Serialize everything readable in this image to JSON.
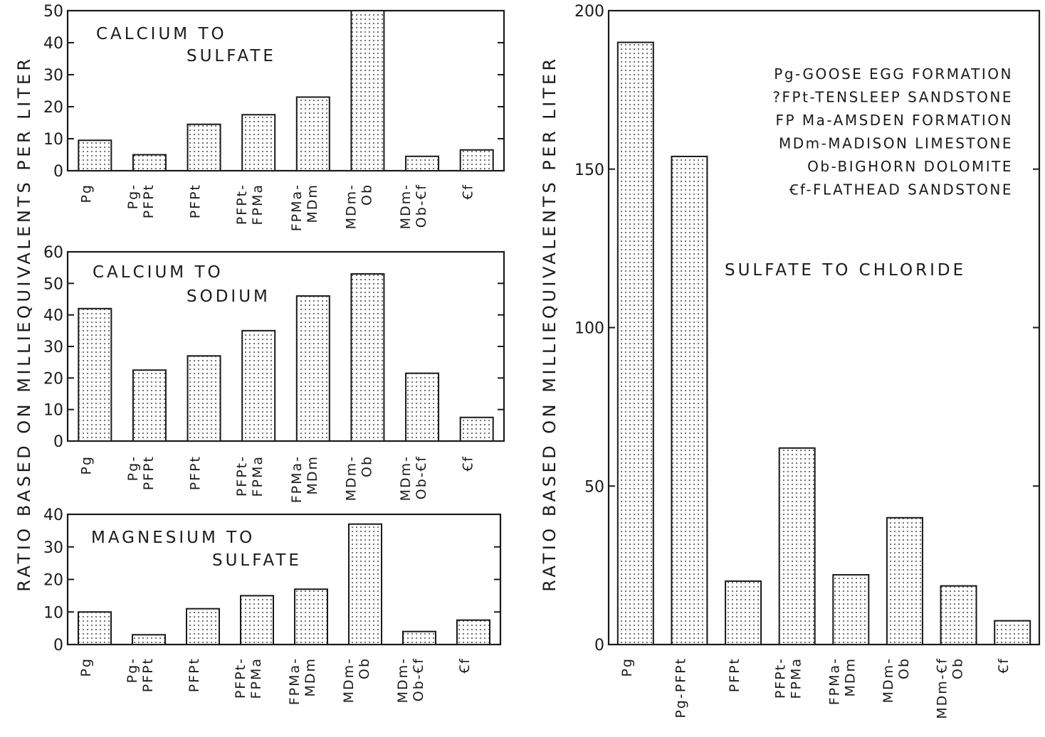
{
  "ylabel": "RATIO BASED ON MILLIEQUIVALENTS PER LITER",
  "chart_data": [
    {
      "id": "ca-so4",
      "type": "bar",
      "title_lines": [
        "CALCIUM TO",
        "SULFATE"
      ],
      "categories": [
        "Pg",
        "Pg-\nPFPt",
        "PFPt",
        "PFPt-\nFPMa",
        "FPMa-\nMDm",
        "MDm-\nOb",
        "MDm-\nOb-Ꞓf",
        "Ꞓf"
      ],
      "values": [
        9.5,
        5,
        14.5,
        17.5,
        23,
        50,
        4.5,
        6.5
      ],
      "ylim": [
        0,
        50
      ],
      "yticks": [
        0,
        10,
        20,
        30,
        40,
        50
      ],
      "ylabel": "RATIO BASED ON MILLIEQUIVALENTS PER LITER"
    },
    {
      "id": "ca-na",
      "type": "bar",
      "title_lines": [
        "CALCIUM TO",
        "SODIUM"
      ],
      "categories": [
        "Pg",
        "Pg-\nPFPt",
        "PFPt",
        "PFPt-\nFPMa",
        "FPMa-\nMDm",
        "MDm-\nOb",
        "MDm-\nOb-Ꞓf",
        "Ꞓf"
      ],
      "values": [
        42,
        22.5,
        27,
        35,
        46,
        53,
        21.5,
        7.5
      ],
      "ylim": [
        0,
        60
      ],
      "yticks": [
        0,
        10,
        20,
        30,
        40,
        50,
        60
      ],
      "ylabel": "RATIO BASED ON MILLIEQUIVALENTS PER LITER"
    },
    {
      "id": "mg-so4",
      "type": "bar",
      "title_lines": [
        "MAGNESIUM TO",
        "SULFATE"
      ],
      "categories": [
        "Pg",
        "Pg-\nPFPt",
        "PFPt",
        "PFPt-\nFPMa",
        "FPMa-\nMDm",
        "MDm-\nOb",
        "MDm-\nOb-Ꞓf",
        "Ꞓf"
      ],
      "values": [
        10,
        3,
        11,
        15,
        17,
        37,
        4,
        7.5
      ],
      "ylim": [
        0,
        40
      ],
      "yticks": [
        0,
        10,
        20,
        30,
        40
      ],
      "ylabel": "RATIO BASED ON MILLIEQUIVALENTS PER LITER"
    },
    {
      "id": "so4-cl",
      "type": "bar",
      "title_lines": [
        "SULFATE TO CHLORIDE"
      ],
      "categories": [
        "Pg",
        "Pg-PFPt",
        "PFPt",
        "PFPt-\nFPMa",
        "FPMa-\nMDm",
        "MDm-\nOb",
        "MDm-Ꞓf\nOb",
        "Ꞓf"
      ],
      "values": [
        190,
        154,
        20,
        62,
        22,
        40,
        18.5,
        7.5
      ],
      "ylim": [
        0,
        200
      ],
      "yticks": [
        0,
        50,
        100,
        150,
        200
      ],
      "ylabel": "RATIO BASED ON MILLIEQUIVALENTS PER LITER",
      "legend_position": "top-right",
      "legend": [
        "Pg-GOOSE EGG FORMATION",
        "?FPt-TENSLEEP SANDSTONE",
        "FP Ma-AMSDEN FORMATION",
        "MDm-MADISON LIMESTONE",
        "Ob-BIGHORN DOLOMITE",
        "Ꞓf-FLATHEAD SANDSTONE"
      ]
    }
  ]
}
